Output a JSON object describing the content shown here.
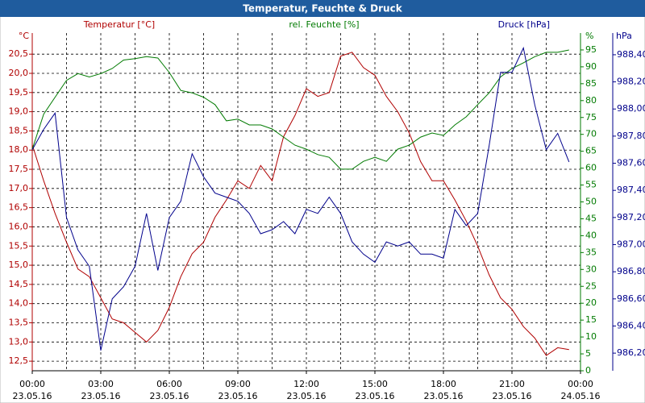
{
  "chart_data": {
    "type": "line",
    "title": "Temperatur, Feuchte & Druck",
    "y_unit": "°C",
    "y2_unit": "%",
    "y3_unit": "hPa",
    "x": [
      0,
      0.5,
      1,
      1.5,
      2,
      2.5,
      3,
      3.5,
      4,
      4.5,
      5,
      5.5,
      6,
      6.5,
      7,
      7.5,
      8,
      8.5,
      9,
      9.5,
      10,
      10.5,
      11,
      11.5,
      12,
      12.5,
      13,
      13.5,
      14,
      14.5,
      15,
      15.5,
      16,
      16.5,
      17,
      17.5,
      18,
      18.5,
      19,
      19.5,
      20,
      20.5,
      21,
      21.5,
      22,
      22.5,
      23,
      23.5
    ],
    "xlim": [
      0,
      24
    ],
    "xticks": [
      {
        "value": 0,
        "label": "00:00\n23.05.16"
      },
      {
        "value": 3,
        "label": "03:00\n23.05.16"
      },
      {
        "value": 6,
        "label": "06:00\n23.05.16"
      },
      {
        "value": 9,
        "label": "09:00\n23.05.16"
      },
      {
        "value": 12,
        "label": "12:00\n23.05.16"
      },
      {
        "value": 15,
        "label": "15:00\n23.05.16"
      },
      {
        "value": 18,
        "label": "18:00\n23.05.16"
      },
      {
        "value": 21,
        "label": "21:00\n23.05.16"
      },
      {
        "value": 24,
        "label": "00:00\n24.05.16"
      }
    ],
    "xminor": [
      1.5,
      4.5,
      7.5,
      10.5,
      13.5,
      16.5,
      19.5,
      22.5
    ],
    "grid": true,
    "ylim": [
      12.25,
      21.05
    ],
    "yticks": [
      {
        "value": 12.5,
        "label": "12,5"
      },
      {
        "value": 13,
        "label": "13,0"
      },
      {
        "value": 13.5,
        "label": "13,5"
      },
      {
        "value": 14,
        "label": "14,0"
      },
      {
        "value": 14.5,
        "label": "14,5"
      },
      {
        "value": 15,
        "label": "15,0"
      },
      {
        "value": 15.5,
        "label": "15,5"
      },
      {
        "value": 16,
        "label": "16,0"
      },
      {
        "value": 16.5,
        "label": "16,5"
      },
      {
        "value": 17,
        "label": "17,0"
      },
      {
        "value": 17.5,
        "label": "17,5"
      },
      {
        "value": 18,
        "label": "18,0"
      },
      {
        "value": 18.5,
        "label": "18,5"
      },
      {
        "value": 19,
        "label": "19,0"
      },
      {
        "value": 19.5,
        "label": "19,5"
      },
      {
        "value": 20,
        "label": "20,0"
      },
      {
        "value": 20.5,
        "label": "20,5"
      }
    ],
    "y2lim": [
      0,
      100
    ],
    "y2ticks": [
      0,
      5,
      10,
      15,
      20,
      25,
      30,
      35,
      40,
      45,
      50,
      55,
      60,
      65,
      70,
      75,
      80,
      85,
      90,
      95
    ],
    "y3lim": [
      986.07,
      988.56
    ],
    "y3ticks": [
      {
        "value": 986.2,
        "label": "986,20"
      },
      {
        "value": 986.4,
        "label": "986,40"
      },
      {
        "value": 986.6,
        "label": "986,60"
      },
      {
        "value": 986.8,
        "label": "986,80"
      },
      {
        "value": 987.0,
        "label": "987,00"
      },
      {
        "value": 987.2,
        "label": "987,20"
      },
      {
        "value": 987.4,
        "label": "987,40"
      },
      {
        "value": 987.6,
        "label": "987,60"
      },
      {
        "value": 987.8,
        "label": "987,80"
      },
      {
        "value": 988.0,
        "label": "988,00"
      },
      {
        "value": 988.2,
        "label": "988,20"
      },
      {
        "value": 988.4,
        "label": "988,40"
      }
    ],
    "series": [
      {
        "name": "Temperatur [°C]",
        "color": "#b00000",
        "axis": "y",
        "values": [
          18.14,
          17.2,
          16.35,
          15.6,
          14.9,
          14.7,
          14.15,
          13.6,
          13.5,
          13.25,
          13.0,
          13.3,
          13.9,
          14.7,
          15.3,
          15.6,
          16.25,
          16.7,
          17.2,
          17.0,
          17.6,
          17.2,
          18.35,
          18.9,
          19.6,
          19.4,
          19.5,
          20.45,
          20.55,
          20.15,
          19.95,
          19.4,
          19.0,
          18.45,
          17.7,
          17.2,
          17.2,
          16.7,
          16.15,
          15.5,
          14.75,
          14.15,
          13.85,
          13.4,
          13.1,
          12.65,
          12.85,
          12.8
        ]
      },
      {
        "name": "rel. Feuchte [%]",
        "color": "#007a00",
        "axis": "y2",
        "values": [
          65.6,
          76,
          81,
          86,
          88,
          87,
          88,
          89.5,
          92,
          92.4,
          93,
          92.6,
          88.3,
          83,
          82.3,
          81,
          78.8,
          74,
          74.5,
          72.8,
          72.8,
          71.6,
          69.2,
          66.8,
          65.6,
          64,
          63.2,
          59.7,
          59.7,
          62,
          63.2,
          62,
          65.6,
          66.8,
          69.2,
          70.4,
          69.7,
          72.8,
          75.2,
          78.8,
          82.3,
          87,
          89.5,
          91.2,
          93,
          94.3,
          94.3,
          95
        ]
      },
      {
        "name": "Druck [hPa]",
        "color": "#00008b",
        "axis": "y3",
        "values": [
          987.7,
          987.85,
          987.97,
          987.2,
          986.96,
          986.84,
          986.22,
          986.6,
          986.69,
          986.84,
          987.23,
          986.81,
          987.2,
          987.32,
          987.67,
          987.5,
          987.38,
          987.35,
          987.32,
          987.23,
          987.08,
          987.11,
          987.17,
          987.08,
          987.26,
          987.23,
          987.35,
          987.23,
          987.02,
          986.93,
          986.87,
          987.02,
          986.99,
          987.02,
          986.93,
          986.93,
          986.9,
          987.26,
          987.14,
          987.23,
          987.73,
          988.27,
          988.27,
          988.45,
          988.03,
          987.7,
          987.82,
          987.61
        ]
      }
    ]
  }
}
